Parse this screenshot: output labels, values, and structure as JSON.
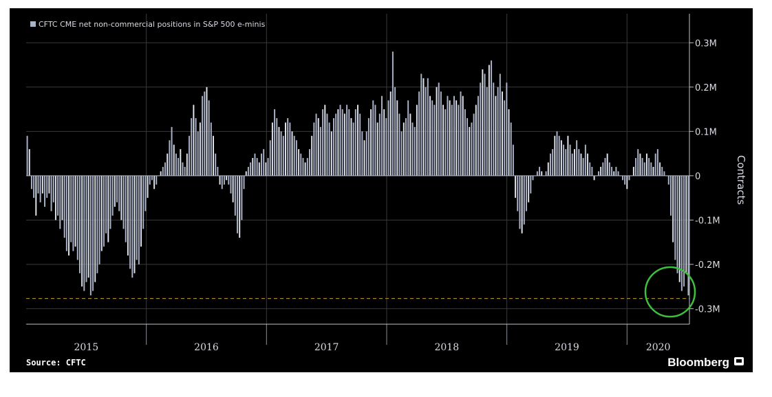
{
  "chart_data": {
    "type": "bar",
    "title": "",
    "legend": "CFTC CME net non-commercial positions in S&P 500 e-minis",
    "legend_placement": "top-left",
    "ylabel": "Contracts",
    "ylim": [
      -0.335,
      0.35
    ],
    "y_axis_side": "right",
    "yticks": [
      {
        "value": 0.3,
        "label": "0.3M"
      },
      {
        "value": 0.2,
        "label": "0.2M"
      },
      {
        "value": 0.1,
        "label": "0.1M"
      },
      {
        "value": 0.0,
        "label": "0"
      },
      {
        "value": -0.1,
        "label": "-0.1M"
      },
      {
        "value": -0.2,
        "label": "-0.2M"
      },
      {
        "value": -0.3,
        "label": "-0.3M"
      }
    ],
    "years": [
      "2015",
      "2016",
      "2017",
      "2018",
      "2019",
      "2020"
    ],
    "year_boundaries_weeks": [
      52,
      104,
      156,
      208,
      260
    ],
    "x_range_weeks": [
      0,
      287
    ],
    "grid": true,
    "reference_line": {
      "value": -0.277,
      "style": "dashed",
      "color": "#c8a030"
    },
    "bar_color": "#aab2c8",
    "bar_color_alt": "#dfe3ee",
    "highlight_circle": {
      "color": "#3dc03d"
    },
    "values": [
      0.09,
      0.06,
      -0.03,
      -0.05,
      -0.09,
      -0.04,
      -0.06,
      -0.04,
      -0.07,
      -0.05,
      -0.04,
      -0.08,
      -0.06,
      -0.1,
      -0.09,
      -0.12,
      -0.1,
      -0.14,
      -0.17,
      -0.18,
      -0.15,
      -0.17,
      -0.16,
      -0.19,
      -0.22,
      -0.25,
      -0.26,
      -0.24,
      -0.23,
      -0.27,
      -0.26,
      -0.24,
      -0.22,
      -0.2,
      -0.17,
      -0.16,
      -0.13,
      -0.15,
      -0.12,
      -0.09,
      -0.07,
      -0.06,
      -0.08,
      -0.1,
      -0.12,
      -0.15,
      -0.18,
      -0.21,
      -0.23,
      -0.22,
      -0.19,
      -0.2,
      -0.16,
      -0.12,
      -0.08,
      -0.05,
      -0.02,
      -0.01,
      -0.03,
      -0.02,
      0.0,
      0.01,
      0.02,
      0.03,
      0.05,
      0.08,
      0.11,
      0.07,
      0.05,
      0.04,
      0.06,
      0.03,
      0.02,
      0.05,
      0.09,
      0.13,
      0.16,
      0.13,
      0.1,
      0.12,
      0.18,
      0.19,
      0.2,
      0.17,
      0.12,
      0.09,
      0.05,
      0.02,
      -0.02,
      -0.03,
      -0.02,
      -0.01,
      -0.02,
      -0.04,
      -0.06,
      -0.09,
      -0.13,
      -0.14,
      -0.1,
      -0.03,
      0.01,
      0.02,
      0.03,
      0.04,
      0.05,
      0.04,
      0.03,
      0.05,
      0.06,
      0.03,
      0.04,
      0.08,
      0.12,
      0.15,
      0.13,
      0.11,
      0.1,
      0.09,
      0.12,
      0.13,
      0.12,
      0.1,
      0.09,
      0.08,
      0.06,
      0.05,
      0.04,
      0.03,
      0.04,
      0.06,
      0.09,
      0.12,
      0.14,
      0.13,
      0.11,
      0.15,
      0.16,
      0.14,
      0.12,
      0.1,
      0.13,
      0.14,
      0.15,
      0.16,
      0.15,
      0.14,
      0.16,
      0.15,
      0.13,
      0.12,
      0.15,
      0.16,
      0.14,
      0.1,
      0.08,
      0.1,
      0.13,
      0.15,
      0.17,
      0.16,
      0.12,
      0.14,
      0.18,
      0.15,
      0.13,
      0.17,
      0.19,
      0.28,
      0.2,
      0.17,
      0.14,
      0.1,
      0.12,
      0.13,
      0.17,
      0.14,
      0.12,
      0.11,
      0.16,
      0.19,
      0.23,
      0.22,
      0.2,
      0.22,
      0.18,
      0.17,
      0.16,
      0.2,
      0.21,
      0.19,
      0.16,
      0.15,
      0.18,
      0.17,
      0.16,
      0.18,
      0.17,
      0.16,
      0.19,
      0.18,
      0.15,
      0.13,
      0.11,
      0.12,
      0.14,
      0.16,
      0.18,
      0.21,
      0.24,
      0.23,
      0.2,
      0.25,
      0.26,
      0.21,
      0.18,
      0.2,
      0.23,
      0.19,
      0.17,
      0.21,
      0.15,
      0.12,
      0.07,
      -0.05,
      -0.08,
      -0.12,
      -0.13,
      -0.11,
      -0.08,
      -0.06,
      -0.04,
      -0.01,
      0.0,
      0.01,
      0.02,
      0.01,
      0.0,
      0.01,
      0.03,
      0.05,
      0.06,
      0.09,
      0.1,
      0.09,
      0.08,
      0.07,
      0.06,
      0.09,
      0.07,
      0.05,
      0.06,
      0.08,
      0.06,
      0.05,
      0.04,
      0.07,
      0.05,
      0.03,
      0.02,
      -0.01,
      0.0,
      0.01,
      0.02,
      0.03,
      0.04,
      0.05,
      0.03,
      0.02,
      0.01,
      0.02,
      0.01,
      0.0,
      -0.01,
      -0.02,
      -0.03,
      -0.01,
      0.0,
      0.02,
      0.04,
      0.06,
      0.05,
      0.04,
      0.03,
      0.05,
      0.04,
      0.03,
      0.02,
      0.05,
      0.06,
      0.03,
      0.02,
      0.01,
      0.0,
      -0.02,
      -0.09,
      -0.15,
      -0.19,
      -0.22,
      -0.24,
      -0.26,
      -0.25,
      -0.22,
      -0.27
    ]
  },
  "source": "Source: CFTC",
  "brand": "Bloomberg",
  "brand_icon": "bloomberg-terminal-icon"
}
